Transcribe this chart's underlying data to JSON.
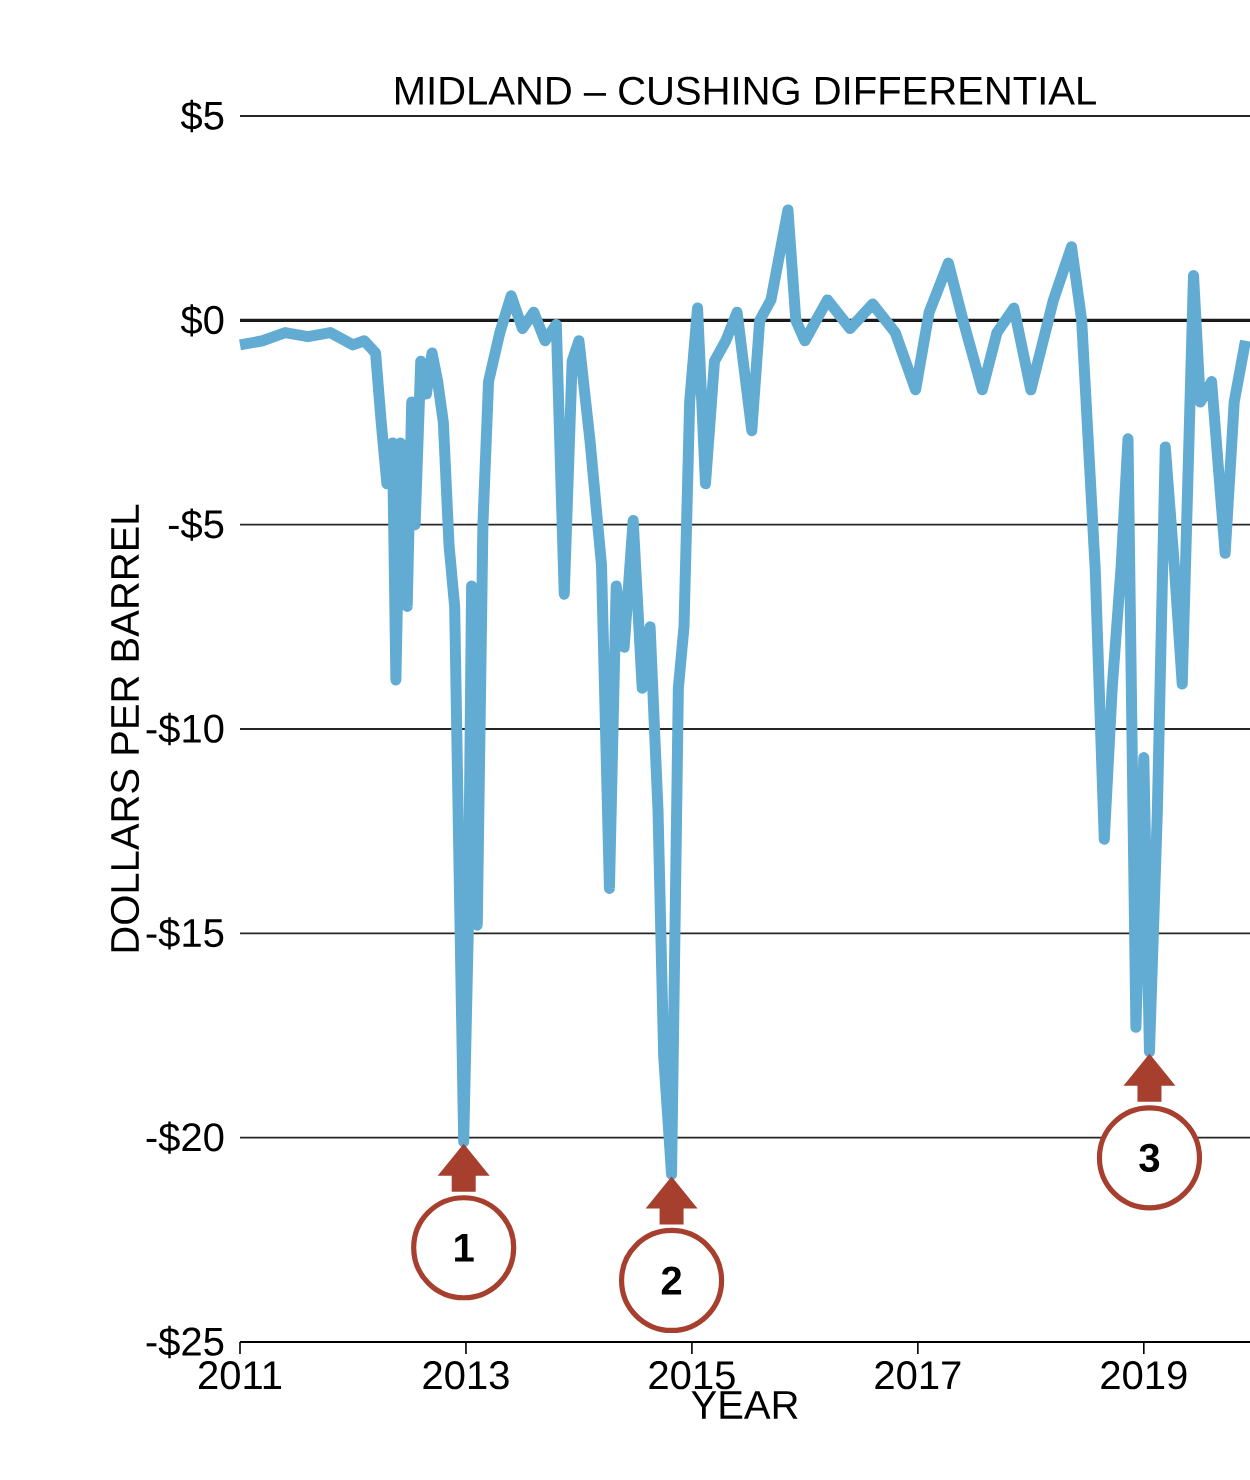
{
  "chart_data": {
    "type": "line",
    "title": "MIDLAND – CUSHING DIFFERENTIAL",
    "xlabel": "YEAR",
    "ylabel": "DOLLARS PER BARREL",
    "xlim": [
      2011,
      2019.94
    ],
    "xticks": [
      2011,
      2013,
      2015,
      2017,
      2019
    ],
    "ylim": [
      -25,
      5
    ],
    "yticks": [
      {
        "value": 5,
        "label": "$5"
      },
      {
        "value": 0,
        "label": "$0"
      },
      {
        "value": -5,
        "label": "-$5"
      },
      {
        "value": -10,
        "label": "-$10"
      },
      {
        "value": -15,
        "label": "-$15"
      },
      {
        "value": -20,
        "label": "-$20"
      },
      {
        "value": -25,
        "label": "-$25"
      }
    ],
    "grid": "y",
    "ref_lines": [
      {
        "axis": "y",
        "value": 0,
        "color": "#1a1a1a"
      }
    ],
    "series": [
      {
        "color": "#62acd4",
        "x": [
          2011.0,
          2011.2,
          2011.4,
          2011.6,
          2011.8,
          2012.0,
          2012.1,
          2012.2,
          2012.25,
          2012.3,
          2012.35,
          2012.38,
          2012.42,
          2012.48,
          2012.52,
          2012.55,
          2012.6,
          2012.65,
          2012.7,
          2012.75,
          2012.8,
          2012.85,
          2012.9,
          2012.98,
          2013.02,
          2013.05,
          2013.1,
          2013.15,
          2013.2,
          2013.3,
          2013.4,
          2013.5,
          2013.6,
          2013.7,
          2013.8,
          2013.87,
          2013.94,
          2014.0,
          2014.1,
          2014.2,
          2014.27,
          2014.33,
          2014.4,
          2014.48,
          2014.56,
          2014.63,
          2014.7,
          2014.75,
          2014.82,
          2014.88,
          2014.93,
          2014.98,
          2015.05,
          2015.12,
          2015.2,
          2015.3,
          2015.4,
          2015.53,
          2015.6,
          2015.7,
          2015.85,
          2015.92,
          2016.0,
          2016.2,
          2016.4,
          2016.6,
          2016.8,
          2016.98,
          2017.1,
          2017.27,
          2017.4,
          2017.57,
          2017.7,
          2017.85,
          2018.0,
          2018.2,
          2018.36,
          2018.45,
          2018.57,
          2018.65,
          2018.72,
          2018.8,
          2018.86,
          2018.93,
          2019.0,
          2019.05,
          2019.12,
          2019.19,
          2019.27,
          2019.34,
          2019.44,
          2019.5,
          2019.6,
          2019.72,
          2019.8,
          2019.9
        ],
        "values": [
          -0.6,
          -0.5,
          -0.3,
          -0.4,
          -0.3,
          -0.6,
          -0.5,
          -0.8,
          -2.5,
          -4.0,
          -3.0,
          -8.8,
          -3.0,
          -7.0,
          -2.0,
          -5.0,
          -1.0,
          -1.8,
          -0.8,
          -1.5,
          -2.5,
          -5.5,
          -7.0,
          -20.1,
          -15.0,
          -6.5,
          -14.8,
          -5.0,
          -1.5,
          -0.3,
          0.6,
          -0.2,
          0.2,
          -0.5,
          -0.1,
          -6.7,
          -1.0,
          -0.5,
          -3.0,
          -6.0,
          -13.9,
          -6.5,
          -8.0,
          -4.9,
          -9.0,
          -7.5,
          -12.0,
          -18.0,
          -20.9,
          -9.0,
          -7.5,
          -2.0,
          0.3,
          -4.0,
          -1.0,
          -0.5,
          0.2,
          -2.7,
          0.0,
          0.5,
          2.7,
          0.0,
          -0.5,
          0.5,
          -0.2,
          0.4,
          -0.3,
          -1.7,
          0.2,
          1.4,
          0.0,
          -1.7,
          -0.3,
          0.3,
          -1.7,
          0.5,
          1.8,
          0.0,
          -6.1,
          -12.7,
          -9.0,
          -6.0,
          -2.9,
          -17.3,
          -10.7,
          -17.9,
          -12.0,
          -3.1,
          -6.0,
          -8.9,
          1.1,
          -2.0,
          -1.5,
          -5.7,
          -2.0,
          -0.5
        ]
      }
    ],
    "annotations": [
      {
        "text": "1",
        "x": 2012.98,
        "y": -20.1
      },
      {
        "text": "2",
        "x": 2014.82,
        "y": -20.9
      },
      {
        "text": "3",
        "x": 2019.05,
        "y": -17.9
      }
    ]
  }
}
